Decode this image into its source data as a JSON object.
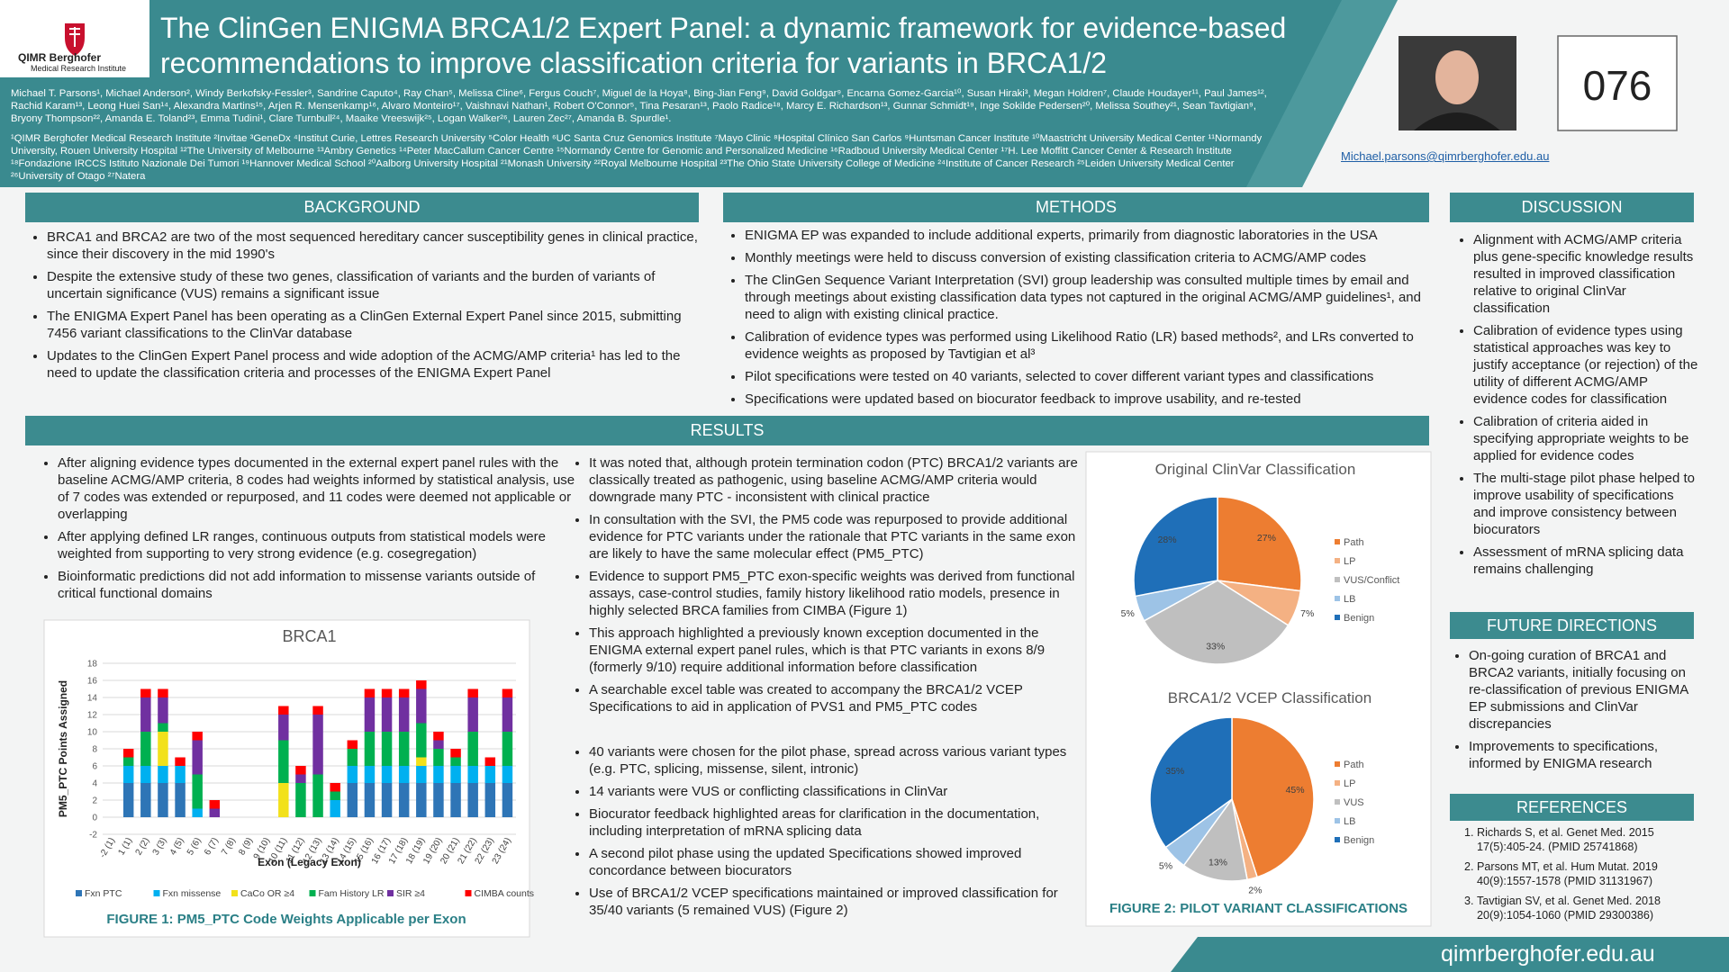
{
  "header": {
    "logo": {
      "name": "QIMR Berghofer",
      "sub": "Medical Research Institute"
    },
    "title": [
      "The ClinGen ENIGMA BRCA1/2 Expert Panel: a dynamic framework for evidence-based",
      "recommendations to improve classification criteria for variants in BRCA1/2"
    ],
    "authors": "Michael T. Parsons¹, Michael Anderson², Windy Berkofsky-Fessler³, Sandrine Caputo⁴, Ray Chan⁵, Melissa Cline⁶, Fergus Couch⁷, Miguel de la Hoya⁸, Bing-Jian Feng⁹, David Goldgar⁹, Encarna Gomez-Garcia¹⁰, Susan Hiraki³, Megan Holdren⁷, Claude Houdayer¹¹, Paul James¹², Rachid Karam¹³, Leong Huei San¹⁴, Alexandra Martins¹⁵, Arjen R. Mensenkamp¹⁶, Alvaro Monteiro¹⁷, Vaishnavi Nathan¹, Robert O'Connor⁵, Tina Pesaran¹³, Paolo Radice¹⁸, Marcy E. Richardson¹³, Gunnar Schmidt¹⁹, Inge Sokilde Pedersen²⁰, Melissa Southey²¹, Sean Tavtigian⁹, Bryony Thompson²², Amanda E. Toland²³, Emma Tudini¹, Clare Turnbull²⁴, Maaike Vreeswijk²⁵, Logan Walker²⁶, Lauren Zec²⁷, Amanda B. Spurdle¹.",
    "affiliations": "¹QIMR Berghofer Medical Research Institute ²Invitae ³GeneDx ⁴Institut Curie, Lettres Research University ⁵Color Health ⁶UC Santa Cruz Genomics Institute ⁷Mayo Clinic ⁸Hospital Clínico San Carlos ⁹Huntsman Cancer Institute ¹⁰Maastricht University Medical Center ¹¹Normandy University, Rouen University Hospital ¹²The University of Melbourne ¹³Ambry Genetics ¹⁴Peter MacCallum Cancer Centre ¹⁵Normandy Centre for Genomic and Personalized Medicine ¹⁶Radboud University Medical Center ¹⁷H. Lee Moffitt Cancer Center & Research Institute ¹⁸Fondazione IRCCS Istituto Nazionale Dei Tumori ¹⁹Hannover Medical School ²⁰Aalborg University Hospital ²¹Monash University ²²Royal Melbourne Hospital ²³The Ohio State University College of Medicine ²⁴Institute of Cancer Research ²⁵Leiden University Medical Center ²⁶University of Otago ²⁷Natera",
    "poster_number": "076",
    "email": "Michael.parsons@qimrberghofer.edu.au"
  },
  "background": {
    "heading": "BACKGROUND",
    "bullets": [
      "BRCA1 and BRCA2 are two of the most sequenced hereditary cancer susceptibility genes in clinical practice, since their discovery in the mid 1990's",
      "Despite the extensive study of these two genes, classification of variants and the burden of variants of uncertain significance (VUS) remains a significant issue",
      "The ENIGMA Expert Panel has been operating as a ClinGen External Expert Panel since 2015, submitting 7456 variant classifications to the ClinVar database",
      "Updates to the ClinGen Expert Panel process and wide adoption of the ACMG/AMP criteria¹ has led to the need to update the classification criteria and processes of the ENIGMA Expert Panel"
    ]
  },
  "methods": {
    "heading": "METHODS",
    "bullets": [
      "ENIGMA EP was expanded to include additional experts, primarily from diagnostic laboratories in the USA",
      "Monthly meetings were held to discuss conversion of existing classification criteria to ACMG/AMP codes",
      "The ClinGen Sequence Variant Interpretation (SVI) group leadership was consulted multiple times by email and through meetings about existing classification data types not captured in the original ACMG/AMP guidelines¹, and need to align with existing clinical practice.",
      "Calibration of evidence types was performed using Likelihood Ratio (LR) based methods², and LRs converted to evidence weights as proposed by Tavtigian et al³",
      "Pilot specifications were tested on 40 variants, selected to cover different variant types and classifications",
      "Specifications were updated based on biocurator feedback to improve usability, and re-tested"
    ]
  },
  "discussion": {
    "heading": "DISCUSSION",
    "bullets": [
      "Alignment with ACMG/AMP criteria plus gene-specific knowledge results resulted in improved classification relative to original ClinVar classification",
      "Calibration of evidence types using statistical approaches was key to justify acceptance (or rejection) of the utility of different ACMG/AMP evidence codes for classification",
      "Calibration of criteria aided in specifying appropriate weights to be applied for evidence codes",
      "The multi-stage pilot phase helped to improve usability of specifications and improve consistency between biocurators",
      "Assessment of mRNA splicing data remains challenging"
    ]
  },
  "future": {
    "heading": "FUTURE DIRECTIONS",
    "bullets": [
      "On-going curation of BRCA1 and BRCA2 variants, initially focusing on re-classification of previous ENIGMA EP submissions and ClinVar discrepancies",
      "Improvements to specifications, informed by ENIGMA research"
    ]
  },
  "references": {
    "heading": "REFERENCES",
    "items": [
      "Richards S, et al. Genet Med. 2015 17(5):405-24. (PMID 25741868)",
      "Parsons MT, et al. Hum Mutat. 2019 40(9):1557-1578 (PMID 31131967)",
      "Tavtigian SV, et al. Genet Med. 2018 20(9):1054-1060 (PMID 29300386)"
    ]
  },
  "results": {
    "heading": "RESULTS",
    "col1": [
      "After aligning evidence types documented in the external expert panel rules with the baseline ACMG/AMP criteria, 8 codes had weights informed by statistical analysis, use of 7 codes was extended or repurposed, and 11 codes were deemed not applicable or overlapping",
      "After applying defined LR ranges, continuous outputs from statistical models were weighted from supporting to very strong evidence (e.g. cosegregation)",
      "Bioinformatic predictions did not add information to missense variants outside of critical functional domains"
    ],
    "col2a": [
      "It was noted that, although protein termination codon (PTC) BRCA1/2 variants are classically treated as pathogenic, using baseline ACMG/AMP criteria would downgrade many PTC - inconsistent with clinical practice",
      "In consultation with the SVI, the PM5 code was repurposed to provide additional evidence for PTC variants under the rationale that PTC variants in the same exon are likely to have the same molecular effect (PM5_PTC)",
      "Evidence to support PM5_PTC exon-specific weights was derived from functional assays, case-control studies, family history likelihood ratio models, presence in highly selected BRCA families from CIMBA (Figure 1)",
      "This approach highlighted a previously known exception documented in the ENIGMA external expert panel rules, which is that PTC variants in exons 8/9 (formerly 9/10) require additional information before classification",
      "A searchable excel table was created to accompany the BRCA1/2 VCEP Specifications to aid in application of PVS1 and PM5_PTC codes"
    ],
    "col2b": [
      "40 variants were chosen for the pilot phase, spread across various variant types (e.g. PTC, splicing, missense, silent, intronic)",
      "14 variants were VUS or conflicting classifications in ClinVar",
      "Biocurator feedback highlighted areas for clarification in the documentation, including interpretation of mRNA splicing data",
      "A second pilot phase using the updated Specifications showed improved concordance between biocurators",
      "Use of BRCA1/2 VCEP specifications maintained or improved classification for 35/40 variants (5 remained VUS) (Figure 2)"
    ],
    "figure2_caption": "FIGURE 2: PILOT VARIANT CLASSIFICATIONS"
  },
  "footer": {
    "url": "qimrberghofer.edu.au"
  },
  "chart_data": [
    {
      "type": "bar",
      "stacked": true,
      "title": "BRCA1",
      "x_label": "Exon (Legacy Exon)",
      "y_label": "PM5_PTC Points Assigned",
      "caption": "FIGURE 1: PM5_PTC Code Weights Applicable per Exon",
      "categories": [
        "-2 (1)",
        "1 (1)",
        "2 (2)",
        "3 (3)",
        "4 (5)",
        "5 (6)",
        "6 (7)",
        "7 (8)",
        "8 (9)",
        "9 (10)",
        "10 (11)",
        "11 (12)",
        "12 (13)",
        "13 (14)",
        "14 (15)",
        "15 (16)",
        "16 (17)",
        "17 (18)",
        "18 (19)",
        "19 (20)",
        "20 (21)",
        "21 (22)",
        "22 (23)",
        "23 (24)"
      ],
      "series": [
        {
          "name": "Fxn PTC",
          "color": "#2e75b6",
          "values": [
            0,
            4,
            4,
            4,
            4,
            0,
            0,
            0,
            0,
            0,
            0,
            0,
            0,
            0,
            4,
            4,
            4,
            4,
            4,
            4,
            4,
            4,
            4,
            4
          ]
        },
        {
          "name": "Fxn missense",
          "color": "#00b0f0",
          "values": [
            0,
            2,
            2,
            2,
            2,
            1,
            0,
            0,
            0,
            0,
            0,
            0,
            0,
            2,
            2,
            2,
            2,
            2,
            2,
            2,
            2,
            2,
            2,
            2
          ]
        },
        {
          "name": "CaCo OR ≥4",
          "color": "#f2e11b",
          "values": [
            0,
            0,
            0,
            4,
            0,
            0,
            0,
            0,
            0,
            0,
            4,
            0,
            0,
            0,
            0,
            0,
            0,
            0,
            1,
            0,
            0,
            0,
            0,
            0
          ]
        },
        {
          "name": "Fam History LR",
          "color": "#00b050",
          "values": [
            0,
            1,
            4,
            1,
            0,
            4,
            0,
            0,
            0,
            0,
            5,
            4,
            5,
            1,
            2,
            4,
            4,
            4,
            4,
            2,
            1,
            4,
            0,
            4
          ]
        },
        {
          "name": "SIR ≥4",
          "color": "#7030a0",
          "values": [
            0,
            0,
            4,
            3,
            0,
            4,
            1,
            0,
            0,
            0,
            3,
            1,
            7,
            0,
            0,
            4,
            4,
            4,
            4,
            1,
            0,
            4,
            0,
            4
          ]
        },
        {
          "name": "CIMBA counts",
          "color": "#ff0000",
          "values": [
            0,
            1,
            1,
            1,
            1,
            1,
            1,
            0,
            0,
            0,
            1,
            1,
            1,
            1,
            1,
            1,
            1,
            1,
            1,
            1,
            1,
            1,
            1,
            1
          ]
        }
      ],
      "ylim": [
        -2,
        18
      ],
      "yticks": [
        -2,
        0,
        2,
        4,
        6,
        8,
        10,
        12,
        14,
        16,
        18
      ],
      "grid": true,
      "legend": "bottom"
    },
    {
      "type": "pie",
      "title": "Original ClinVar Classification",
      "categories": [
        "Path",
        "LP",
        "VUS/Conflict",
        "LB",
        "Benign"
      ],
      "values": [
        27,
        7,
        33,
        5,
        28
      ],
      "value_labels": [
        "27%",
        "7%",
        "33%",
        "5%",
        "28%"
      ],
      "colors": [
        "#ed7d31",
        "#f4b183",
        "#bfbfbf",
        "#9dc3e6",
        "#1f6fb8"
      ],
      "legend": "right"
    },
    {
      "type": "pie",
      "title": "BRCA1/2 VCEP Classification",
      "categories": [
        "Path",
        "LP",
        "VUS",
        "LB",
        "Benign"
      ],
      "values": [
        45,
        2,
        13,
        5,
        35
      ],
      "value_labels": [
        "45%",
        "2%",
        "13%",
        "5%",
        "35%"
      ],
      "colors": [
        "#ed7d31",
        "#f4b183",
        "#bfbfbf",
        "#9dc3e6",
        "#1f6fb8"
      ],
      "legend": "right"
    }
  ]
}
